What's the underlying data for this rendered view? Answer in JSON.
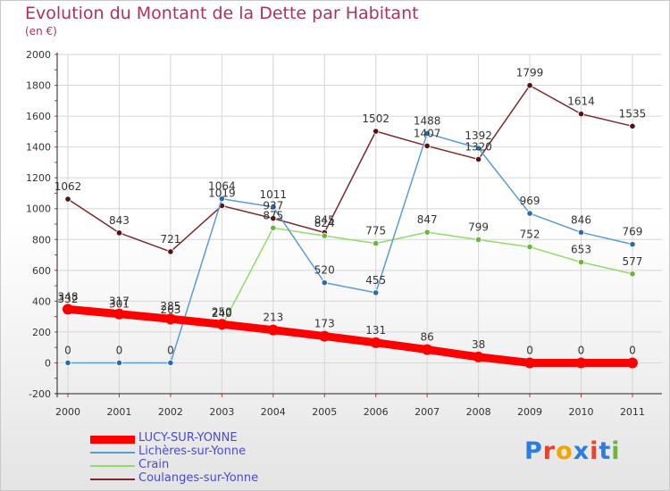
{
  "title": "Evolution du Montant de la Dette par Habitant",
  "unit": "(en €)",
  "logo": {
    "text": "Proxiti",
    "colors": [
      "#2a7de1",
      "#e8412c",
      "#f0a500",
      "#2a7de1",
      "#e8412c",
      "#2a7de1",
      "#6cb33f"
    ]
  },
  "chart_data": {
    "type": "line",
    "x": [
      "2000",
      "2001",
      "2002",
      "2003",
      "2004",
      "2005",
      "2006",
      "2007",
      "2008",
      "2009",
      "2010",
      "2011"
    ],
    "yticks": [
      "-200",
      "0",
      "200",
      "400",
      "600",
      "800",
      "1000",
      "1200",
      "1400",
      "1600",
      "1800",
      "2000"
    ],
    "ylim": [
      -200,
      2000
    ],
    "grid": true,
    "legend_position": "bottom-left",
    "series": [
      {
        "name": "LUCY-SUR-YONNE",
        "color": "#ff0000",
        "marker": "#ff0000",
        "values": [
          348,
          317,
          285,
          250,
          213,
          173,
          131,
          86,
          38,
          0,
          0,
          0
        ],
        "labels": [
          "348",
          "317",
          "285",
          "250",
          "213",
          "173",
          "131",
          "86",
          "38",
          "0",
          "0",
          "0"
        ]
      },
      {
        "name": "Lichères-sur-Yonne",
        "color": "#5b9bd5",
        "marker": "#2b6ca8",
        "values": [
          0,
          0,
          0,
          1064,
          1011,
          520,
          455,
          1488,
          1392,
          969,
          846,
          769
        ],
        "labels": [
          "0",
          "0",
          "0",
          "1064",
          "1011",
          "520",
          "455",
          "1488",
          "1392",
          "969",
          "846",
          "769"
        ]
      },
      {
        "name": "Crain",
        "color": "#8fdc6a",
        "marker": "#6cb33f",
        "values": [
          332,
          301,
          263,
          240,
          875,
          824,
          775,
          847,
          799,
          752,
          653,
          577
        ],
        "labels": [
          "332",
          "301",
          "263",
          "240",
          "875",
          "824",
          "775",
          "847",
          "799",
          "752",
          "653",
          "577"
        ]
      },
      {
        "name": "Coulanges-sur-Yonne",
        "color": "#7a2a2a",
        "marker": "#5a1010",
        "values": [
          1062,
          843,
          721,
          1019,
          937,
          845,
          1502,
          1407,
          1320,
          1799,
          1614,
          1535
        ],
        "labels": [
          "1062",
          "843",
          "721",
          "1019",
          "937",
          "845",
          "1502",
          "1407",
          "1320",
          "1799",
          "1614",
          "1535"
        ]
      }
    ]
  }
}
